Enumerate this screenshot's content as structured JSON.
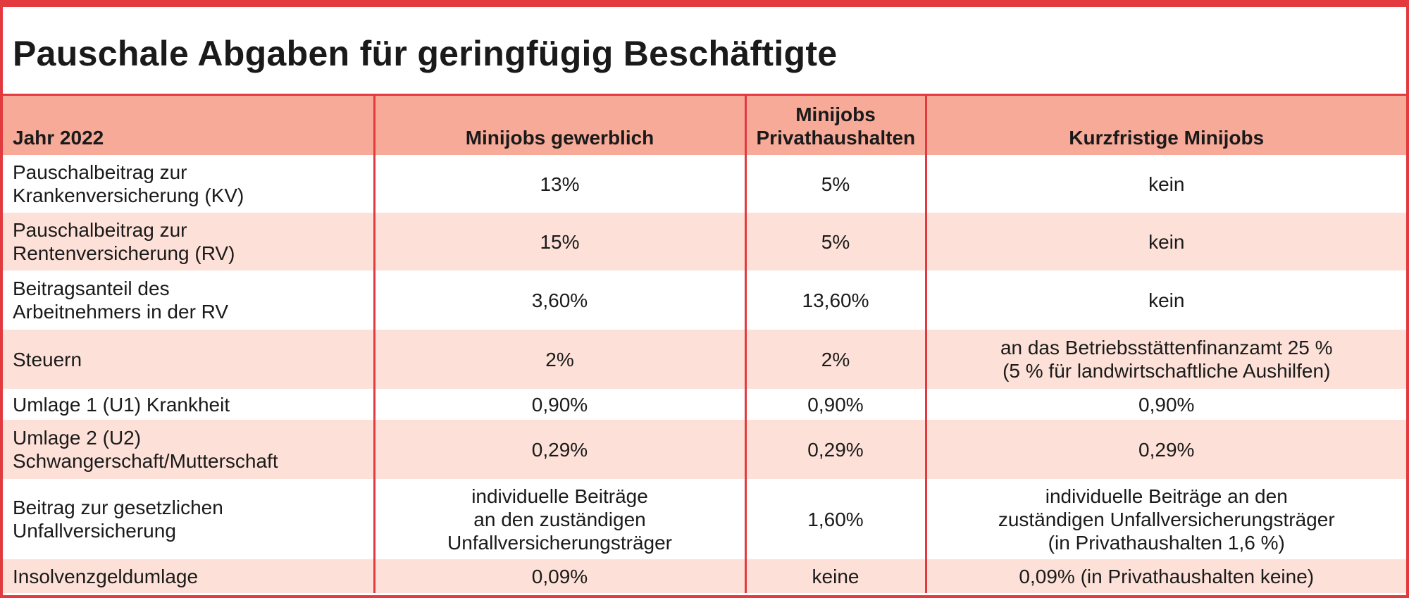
{
  "title": "Pauschale Abgaben für geringfügig Beschäftigte",
  "colors": {
    "accent": "#e23a3f",
    "header_bg": "#f7aa98",
    "row_alt_bg": "#fde1d8"
  },
  "header": {
    "col1": "Jahr 2022",
    "col2": "Minijobs gewerblich",
    "col3_line1": "Minijobs",
    "col3_line2": "Privathaushalten",
    "col4": "Kurzfristige Minijobs"
  },
  "rows": [
    {
      "label": [
        "Pauschalbeitrag zur",
        "Krankenversicherung (KV)"
      ],
      "gewerblich": [
        "13%"
      ],
      "privat": [
        "5%"
      ],
      "kurzfristig": [
        "kein"
      ]
    },
    {
      "label": [
        "Pauschalbeitrag zur",
        "Rentenversicherung (RV)"
      ],
      "gewerblich": [
        "15%"
      ],
      "privat": [
        "5%"
      ],
      "kurzfristig": [
        "kein"
      ]
    },
    {
      "label": [
        "Beitragsanteil des",
        "Arbeitnehmers in der RV"
      ],
      "gewerblich": [
        "3,60%"
      ],
      "privat": [
        "13,60%"
      ],
      "kurzfristig": [
        "kein"
      ]
    },
    {
      "label": [
        "Steuern"
      ],
      "gewerblich": [
        "2%"
      ],
      "privat": [
        "2%"
      ],
      "kurzfristig": [
        "an das Betriebsstättenfinanzamt 25 %",
        "(5 % für landwirtschaftliche Aushilfen)"
      ]
    },
    {
      "label": [
        "Umlage 1 (U1) Krankheit"
      ],
      "gewerblich": [
        "0,90%"
      ],
      "privat": [
        "0,90%"
      ],
      "kurzfristig": [
        "0,90%"
      ]
    },
    {
      "label": [
        "Umlage 2 (U2)",
        "Schwangerschaft/Mutterschaft"
      ],
      "gewerblich": [
        "0,29%"
      ],
      "privat": [
        "0,29%"
      ],
      "kurzfristig": [
        "0,29%"
      ]
    },
    {
      "label": [
        "Beitrag zur gesetzlichen",
        "Unfallversicherung"
      ],
      "gewerblich": [
        "individuelle Beiträge",
        "an den zuständigen",
        "Unfallversicherungsträger"
      ],
      "privat": [
        "1,60%"
      ],
      "kurzfristig": [
        "individuelle Beiträge an den",
        "zuständigen Unfallversicherungsträger",
        "(in Privathaushalten 1,6 %)"
      ]
    },
    {
      "label": [
        "Insolvenzgeldumlage"
      ],
      "gewerblich": [
        "0,09%"
      ],
      "privat": [
        "keine"
      ],
      "kurzfristig": [
        "0,09% (in Privathaushalten keine)"
      ]
    }
  ]
}
